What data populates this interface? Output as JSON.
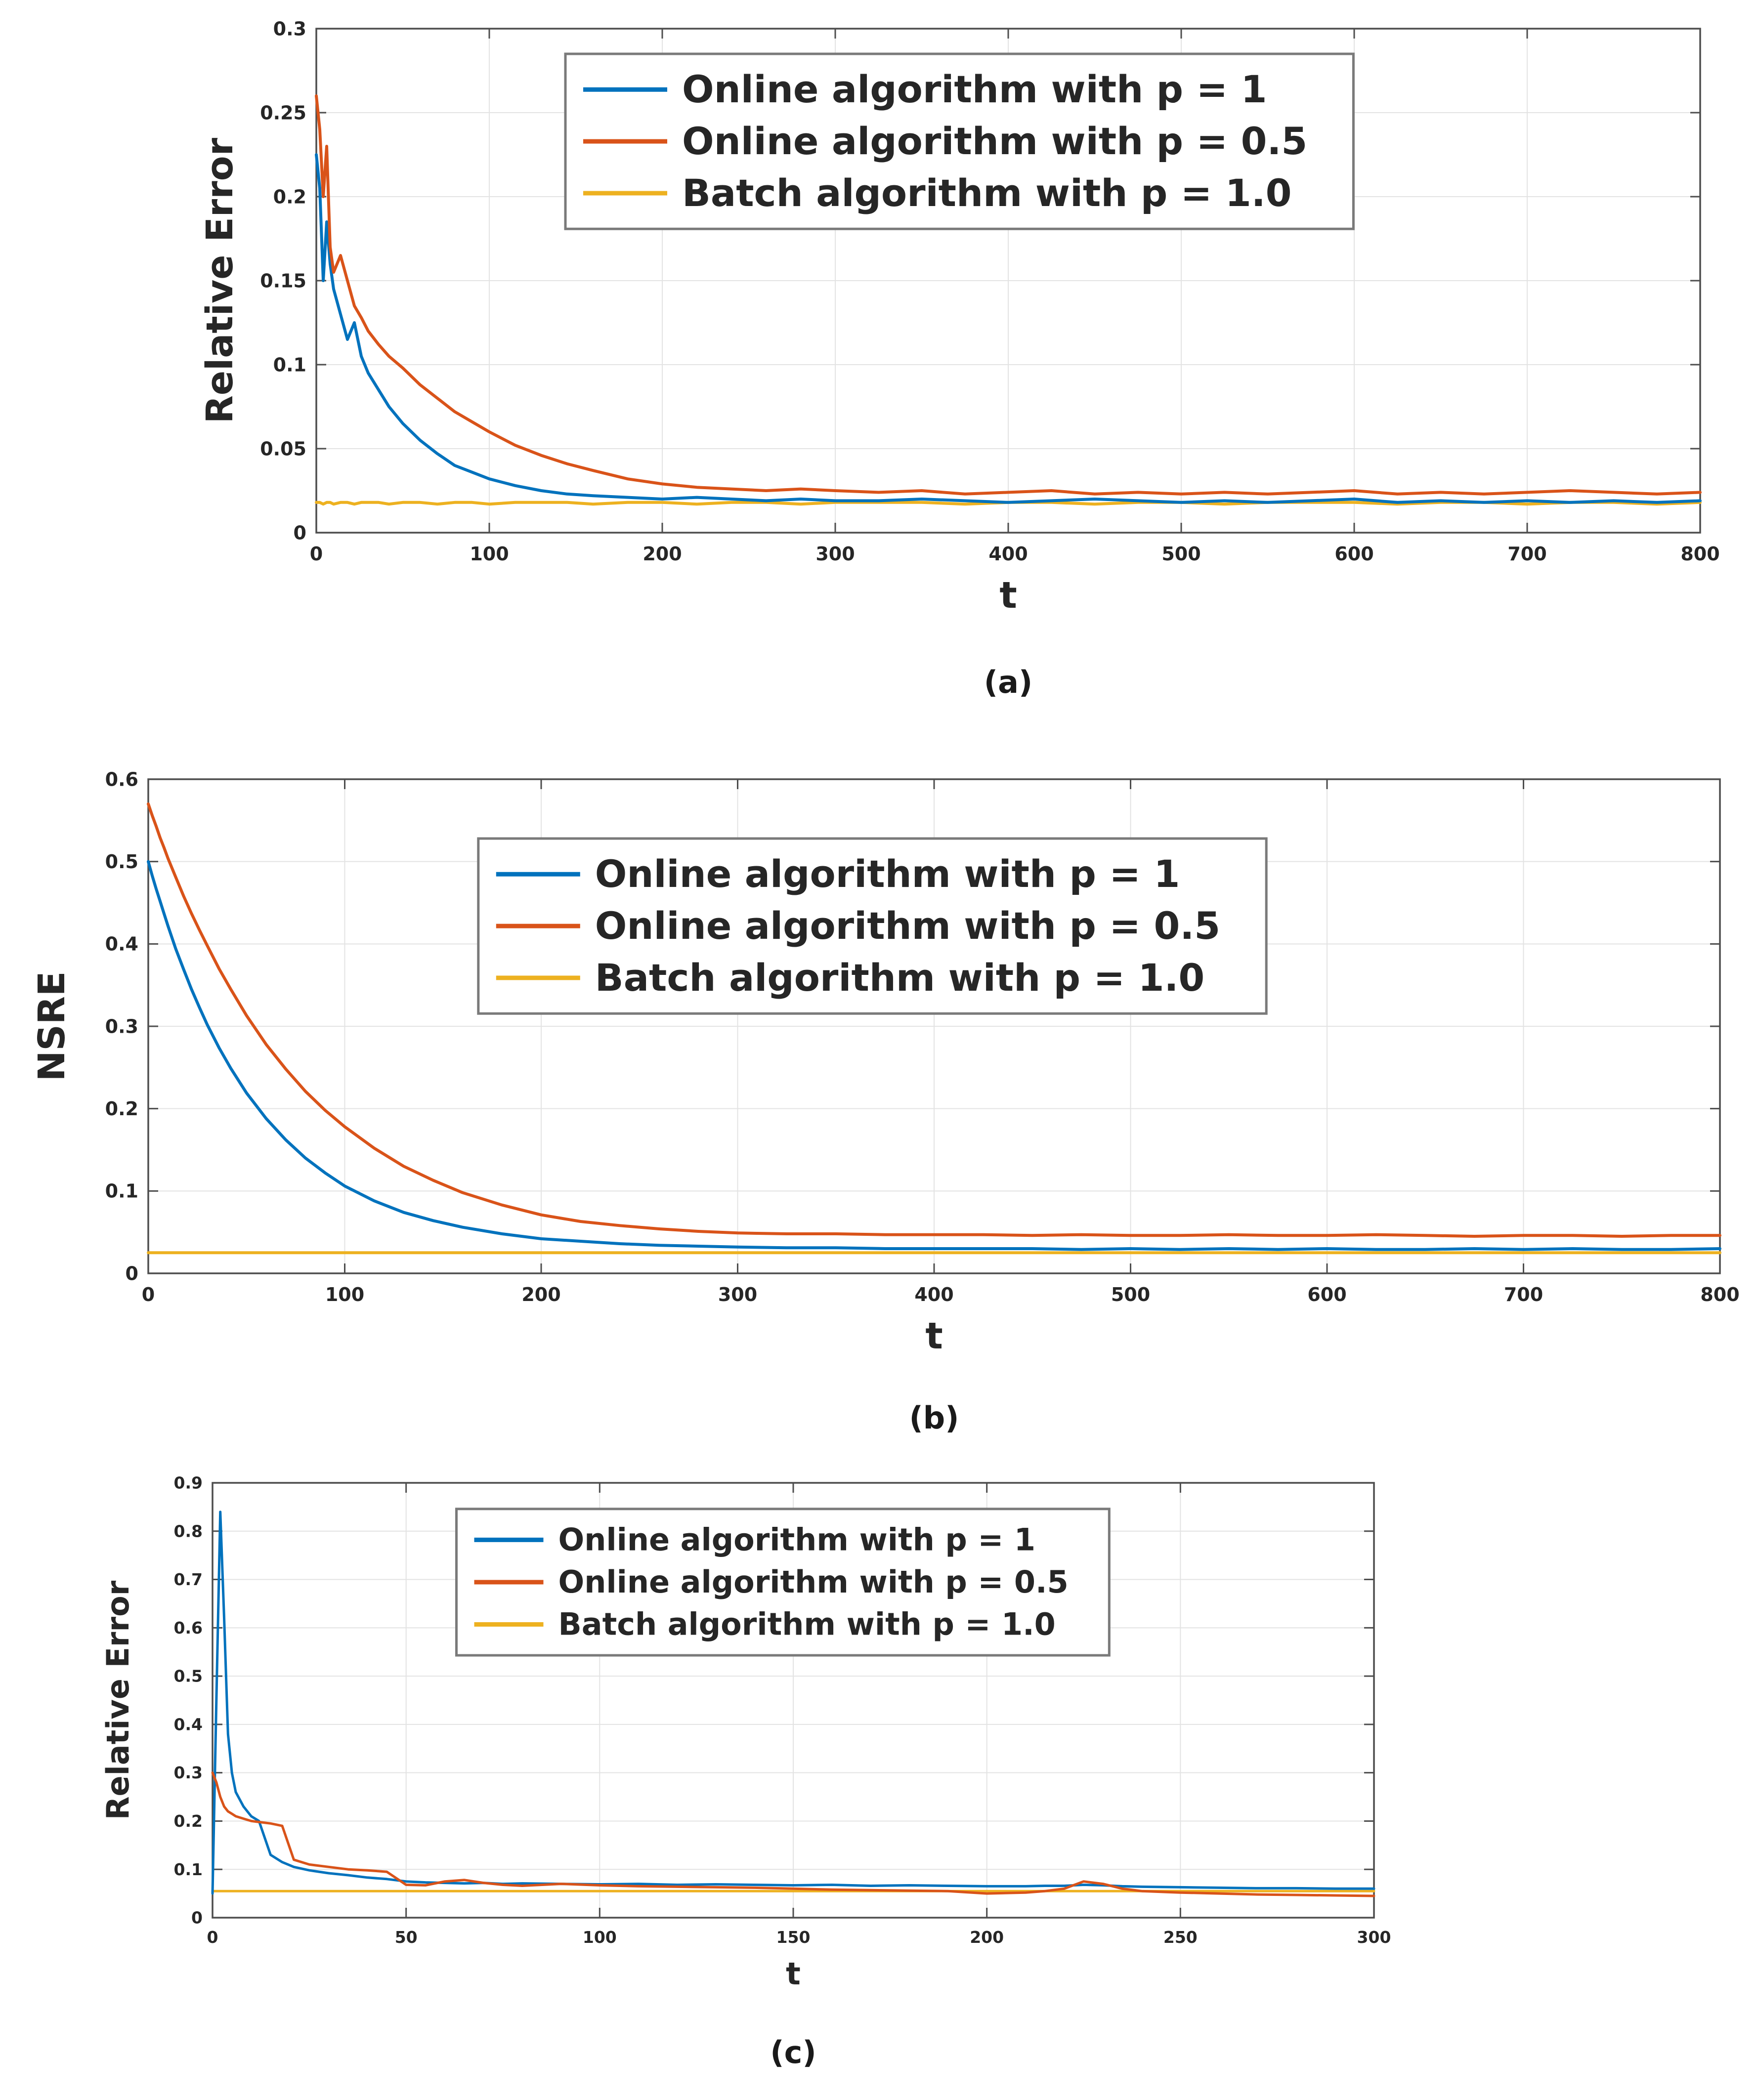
{
  "page": {
    "background": "#ffffff"
  },
  "colors": {
    "blue": "#0072BD",
    "red": "#D95319",
    "yellow": "#EDB120",
    "axis": "#4d4d4d",
    "grid": "#e3e3e3",
    "text": "#262626",
    "legend_border": "#7a7a7a",
    "legend_bg": "#ffffff"
  },
  "chart_data": [
    {
      "id": "a",
      "type": "line",
      "caption": "(a)",
      "xlabel": "t",
      "ylabel": "Relative Error",
      "xlim": [
        0,
        800
      ],
      "ylim": [
        0,
        0.3
      ],
      "grid": true,
      "legend_position": {
        "x": 0.18,
        "y": 0.05
      },
      "xticks": {
        "values": [
          0,
          100,
          200,
          300,
          400,
          500,
          600,
          700,
          800
        ],
        "labels": [
          "0",
          "100",
          "200",
          "300",
          "400",
          "500",
          "600",
          "700",
          "800"
        ]
      },
      "yticks": {
        "values": [
          0,
          0.05,
          0.1,
          0.15,
          0.2,
          0.25,
          0.3
        ],
        "labels": [
          "0",
          "0.05",
          "0.1",
          "0.15",
          "0.2",
          "0.25",
          "0.3"
        ]
      },
      "x": [
        0,
        2,
        4,
        6,
        8,
        10,
        14,
        18,
        22,
        26,
        30,
        36,
        42,
        50,
        60,
        70,
        80,
        90,
        100,
        115,
        130,
        145,
        160,
        180,
        200,
        220,
        240,
        260,
        280,
        300,
        325,
        350,
        375,
        400,
        425,
        450,
        475,
        500,
        525,
        550,
        575,
        600,
        625,
        650,
        675,
        700,
        725,
        750,
        775,
        800
      ],
      "series": [
        {
          "name": "Online algorithm with p = 1",
          "color_key": "blue",
          "y": [
            0.225,
            0.205,
            0.15,
            0.185,
            0.16,
            0.145,
            0.13,
            0.115,
            0.125,
            0.105,
            0.095,
            0.085,
            0.075,
            0.065,
            0.055,
            0.047,
            0.04,
            0.036,
            0.032,
            0.028,
            0.025,
            0.023,
            0.022,
            0.021,
            0.02,
            0.021,
            0.02,
            0.019,
            0.02,
            0.019,
            0.019,
            0.02,
            0.019,
            0.018,
            0.019,
            0.02,
            0.019,
            0.018,
            0.019,
            0.018,
            0.019,
            0.02,
            0.018,
            0.019,
            0.018,
            0.019,
            0.018,
            0.019,
            0.018,
            0.019
          ]
        },
        {
          "name": "Online algorithm with p = 0.5",
          "color_key": "red",
          "y": [
            0.26,
            0.24,
            0.2,
            0.23,
            0.17,
            0.155,
            0.165,
            0.15,
            0.135,
            0.128,
            0.12,
            0.112,
            0.105,
            0.098,
            0.088,
            0.08,
            0.072,
            0.066,
            0.06,
            0.052,
            0.046,
            0.041,
            0.037,
            0.032,
            0.029,
            0.027,
            0.026,
            0.025,
            0.026,
            0.025,
            0.024,
            0.025,
            0.023,
            0.024,
            0.025,
            0.023,
            0.024,
            0.023,
            0.024,
            0.023,
            0.024,
            0.025,
            0.023,
            0.024,
            0.023,
            0.024,
            0.025,
            0.024,
            0.023,
            0.024
          ]
        },
        {
          "name": "Batch algorithm with p = 1.0",
          "color_key": "yellow",
          "y": [
            0.018,
            0.018,
            0.017,
            0.018,
            0.018,
            0.017,
            0.018,
            0.018,
            0.017,
            0.018,
            0.018,
            0.018,
            0.017,
            0.018,
            0.018,
            0.017,
            0.018,
            0.018,
            0.017,
            0.018,
            0.018,
            0.018,
            0.017,
            0.018,
            0.018,
            0.017,
            0.018,
            0.018,
            0.017,
            0.018,
            0.018,
            0.018,
            0.017,
            0.018,
            0.018,
            0.017,
            0.018,
            0.018,
            0.017,
            0.018,
            0.018,
            0.018,
            0.017,
            0.018,
            0.018,
            0.017,
            0.018,
            0.018,
            0.017,
            0.018
          ]
        }
      ]
    },
    {
      "id": "b",
      "type": "line",
      "caption": "(b)",
      "xlabel": "t",
      "ylabel": "NSRE",
      "xlim": [
        0,
        800
      ],
      "ylim": [
        0,
        0.6
      ],
      "grid": true,
      "legend_position": {
        "x": 0.21,
        "y": 0.12
      },
      "xticks": {
        "values": [
          0,
          100,
          200,
          300,
          400,
          500,
          600,
          700,
          800
        ],
        "labels": [
          "0",
          "100",
          "200",
          "300",
          "400",
          "500",
          "600",
          "700",
          "800"
        ]
      },
      "yticks": {
        "values": [
          0,
          0.1,
          0.2,
          0.3,
          0.4,
          0.5,
          0.6
        ],
        "labels": [
          "0",
          "0.1",
          "0.2",
          "0.3",
          "0.4",
          "0.5",
          "0.6"
        ]
      },
      "x": [
        0,
        2,
        4,
        6,
        8,
        10,
        14,
        18,
        22,
        26,
        30,
        36,
        42,
        50,
        60,
        70,
        80,
        90,
        100,
        115,
        130,
        145,
        160,
        180,
        200,
        220,
        240,
        260,
        280,
        300,
        325,
        350,
        375,
        400,
        425,
        450,
        475,
        500,
        525,
        550,
        575,
        600,
        625,
        650,
        675,
        700,
        725,
        750,
        775,
        800
      ],
      "series": [
        {
          "name": "Online algorithm with p = 1",
          "color_key": "blue",
          "y": [
            0.5,
            0.483,
            0.467,
            0.452,
            0.437,
            0.422,
            0.394,
            0.369,
            0.345,
            0.323,
            0.302,
            0.274,
            0.249,
            0.219,
            0.188,
            0.162,
            0.14,
            0.122,
            0.106,
            0.088,
            0.074,
            0.064,
            0.056,
            0.048,
            0.042,
            0.039,
            0.036,
            0.034,
            0.033,
            0.032,
            0.031,
            0.031,
            0.03,
            0.03,
            0.03,
            0.03,
            0.029,
            0.03,
            0.029,
            0.03,
            0.029,
            0.03,
            0.029,
            0.029,
            0.03,
            0.029,
            0.03,
            0.029,
            0.029,
            0.03
          ]
        },
        {
          "name": "Online algorithm with p = 0.5",
          "color_key": "red",
          "y": [
            0.57,
            0.556,
            0.543,
            0.529,
            0.517,
            0.504,
            0.481,
            0.458,
            0.437,
            0.417,
            0.398,
            0.37,
            0.345,
            0.313,
            0.278,
            0.248,
            0.221,
            0.198,
            0.178,
            0.152,
            0.13,
            0.113,
            0.098,
            0.083,
            0.071,
            0.063,
            0.058,
            0.054,
            0.051,
            0.049,
            0.048,
            0.048,
            0.047,
            0.047,
            0.047,
            0.046,
            0.047,
            0.046,
            0.046,
            0.047,
            0.046,
            0.046,
            0.047,
            0.046,
            0.045,
            0.046,
            0.046,
            0.045,
            0.046,
            0.046
          ]
        },
        {
          "name": "Batch algorithm with p = 1.0",
          "color_key": "yellow",
          "y": [
            0.025,
            0.025,
            0.025,
            0.025,
            0.025,
            0.025,
            0.025,
            0.025,
            0.025,
            0.025,
            0.025,
            0.025,
            0.025,
            0.025,
            0.025,
            0.025,
            0.025,
            0.025,
            0.025,
            0.025,
            0.025,
            0.025,
            0.025,
            0.025,
            0.025,
            0.025,
            0.025,
            0.025,
            0.025,
            0.025,
            0.025,
            0.025,
            0.025,
            0.025,
            0.025,
            0.025,
            0.025,
            0.025,
            0.025,
            0.025,
            0.025,
            0.025,
            0.025,
            0.025,
            0.025,
            0.025,
            0.025,
            0.025,
            0.025,
            0.025
          ]
        }
      ]
    },
    {
      "id": "c",
      "type": "line",
      "caption": "(c)",
      "xlabel": "t",
      "ylabel": "Relative Error",
      "xlim": [
        0,
        300
      ],
      "ylim": [
        0,
        0.9
      ],
      "grid": true,
      "legend_position": {
        "x": 0.21,
        "y": 0.06
      },
      "xticks": {
        "values": [
          0,
          50,
          100,
          150,
          200,
          250,
          300
        ],
        "labels": [
          "0",
          "50",
          "100",
          "150",
          "200",
          "250",
          "300"
        ]
      },
      "yticks": {
        "values": [
          0,
          0.1,
          0.2,
          0.3,
          0.4,
          0.5,
          0.6,
          0.7,
          0.8,
          0.9
        ],
        "labels": [
          "0",
          "0.1",
          "0.2",
          "0.3",
          "0.4",
          "0.5",
          "0.6",
          "0.7",
          "0.8",
          "0.9"
        ]
      },
      "x": [
        0,
        1,
        2,
        3,
        4,
        5,
        6,
        8,
        10,
        12,
        15,
        18,
        21,
        25,
        30,
        35,
        40,
        45,
        50,
        55,
        60,
        65,
        70,
        75,
        80,
        90,
        100,
        110,
        120,
        130,
        140,
        150,
        160,
        170,
        180,
        190,
        200,
        210,
        215,
        220,
        225,
        230,
        235,
        240,
        250,
        260,
        270,
        280,
        290,
        300
      ],
      "series": [
        {
          "name": "Online algorithm with p = 1",
          "color_key": "blue",
          "y": [
            0.05,
            0.45,
            0.84,
            0.62,
            0.38,
            0.3,
            0.26,
            0.23,
            0.21,
            0.2,
            0.13,
            0.115,
            0.105,
            0.098,
            0.092,
            0.088,
            0.083,
            0.08,
            0.075,
            0.073,
            0.072,
            0.071,
            0.072,
            0.07,
            0.071,
            0.07,
            0.069,
            0.07,
            0.068,
            0.069,
            0.068,
            0.067,
            0.068,
            0.066,
            0.067,
            0.066,
            0.065,
            0.065,
            0.066,
            0.066,
            0.068,
            0.067,
            0.065,
            0.064,
            0.063,
            0.062,
            0.061,
            0.061,
            0.06,
            0.06
          ]
        },
        {
          "name": "Online algorithm with p = 0.5",
          "color_key": "red",
          "y": [
            0.3,
            0.28,
            0.25,
            0.23,
            0.22,
            0.215,
            0.21,
            0.205,
            0.2,
            0.198,
            0.195,
            0.19,
            0.12,
            0.11,
            0.105,
            0.1,
            0.098,
            0.095,
            0.068,
            0.067,
            0.075,
            0.078,
            0.072,
            0.068,
            0.066,
            0.07,
            0.067,
            0.065,
            0.064,
            0.063,
            0.062,
            0.06,
            0.058,
            0.057,
            0.056,
            0.055,
            0.05,
            0.052,
            0.055,
            0.06,
            0.075,
            0.07,
            0.06,
            0.055,
            0.052,
            0.05,
            0.048,
            0.047,
            0.046,
            0.045
          ]
        },
        {
          "name": "Batch algorithm with p = 1.0",
          "color_key": "yellow",
          "y": [
            0.055,
            0.055,
            0.055,
            0.055,
            0.055,
            0.055,
            0.055,
            0.055,
            0.055,
            0.055,
            0.055,
            0.055,
            0.055,
            0.055,
            0.055,
            0.055,
            0.055,
            0.055,
            0.055,
            0.055,
            0.055,
            0.055,
            0.055,
            0.055,
            0.055,
            0.055,
            0.055,
            0.055,
            0.055,
            0.055,
            0.055,
            0.055,
            0.055,
            0.055,
            0.055,
            0.055,
            0.055,
            0.055,
            0.055,
            0.055,
            0.055,
            0.055,
            0.055,
            0.055,
            0.055,
            0.055,
            0.055,
            0.055,
            0.055,
            0.055
          ]
        }
      ]
    }
  ]
}
